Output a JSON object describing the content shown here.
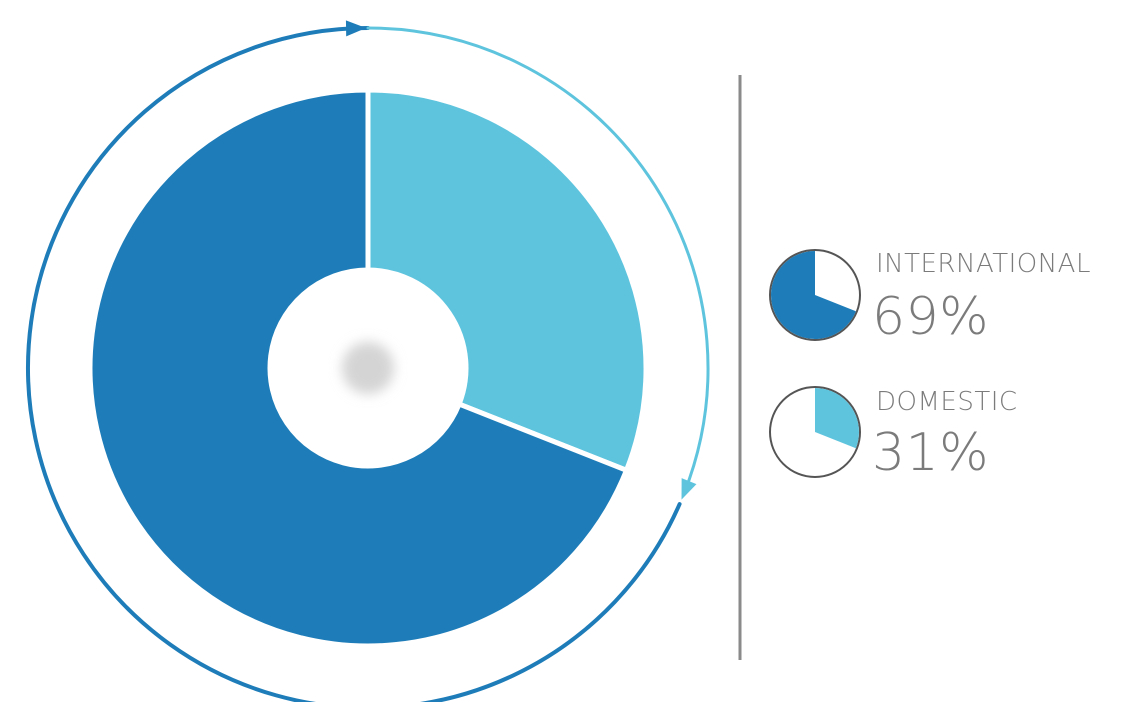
{
  "chart_data": {
    "type": "pie",
    "style": "donut",
    "slices": [
      {
        "label": "INTERNATIONAL",
        "value": 69,
        "value_label": "69%",
        "color": "#1e7db8"
      },
      {
        "label": "DOMESTIC",
        "value": 31,
        "value_label": "31%",
        "color": "#5ec4de"
      }
    ],
    "legend_position": "right",
    "ring_colors": {
      "international": "#1e7db8",
      "domestic": "#5ec4de"
    },
    "divider_color": "#8a8a8a",
    "center_dot_color": "#d4d4d4",
    "legend_text_color": "#7b7b7b"
  }
}
